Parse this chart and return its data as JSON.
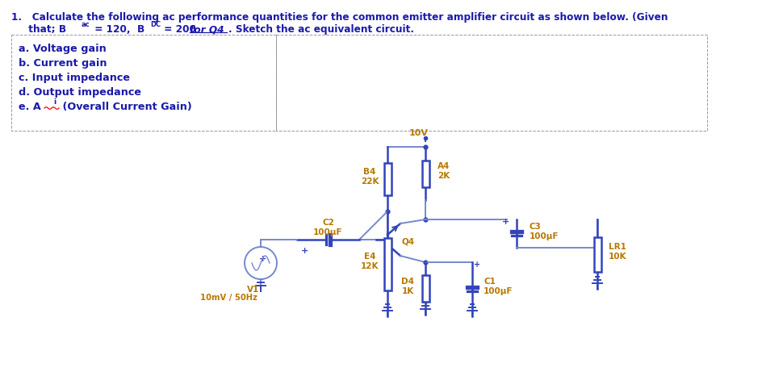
{
  "bg_color": "#ffffff",
  "text_color": "#1a1aaa",
  "orange_color": "#b87800",
  "circuit_color": "#3344bb",
  "circuit_color2": "#7788cc",
  "figsize": [
    9.45,
    4.66
  ],
  "dpi": 100,
  "vcc": "10V",
  "title_line1": "1.   Calculate the following ac performance quantities for the common emitter amplifier circuit as shown below. (Given",
  "title_line2_prefix": "     that; B",
  "title_line2_sub1": "ac",
  "title_line2_mid": " = 120,  B",
  "title_line2_sub2": "DC",
  "title_line2_num": " = 200 ",
  "title_line2_italic": "for Q4",
  "title_line2_suffix": ". Sketch the ac equivalent circuit.",
  "items": [
    "a. Voltage gain",
    "b. Current gain",
    "c. Input impedance",
    "d. Output impedance",
    "e. A"
  ],
  "item_e_sub": "i",
  "item_e_rest": " (Overall Current Gain)"
}
